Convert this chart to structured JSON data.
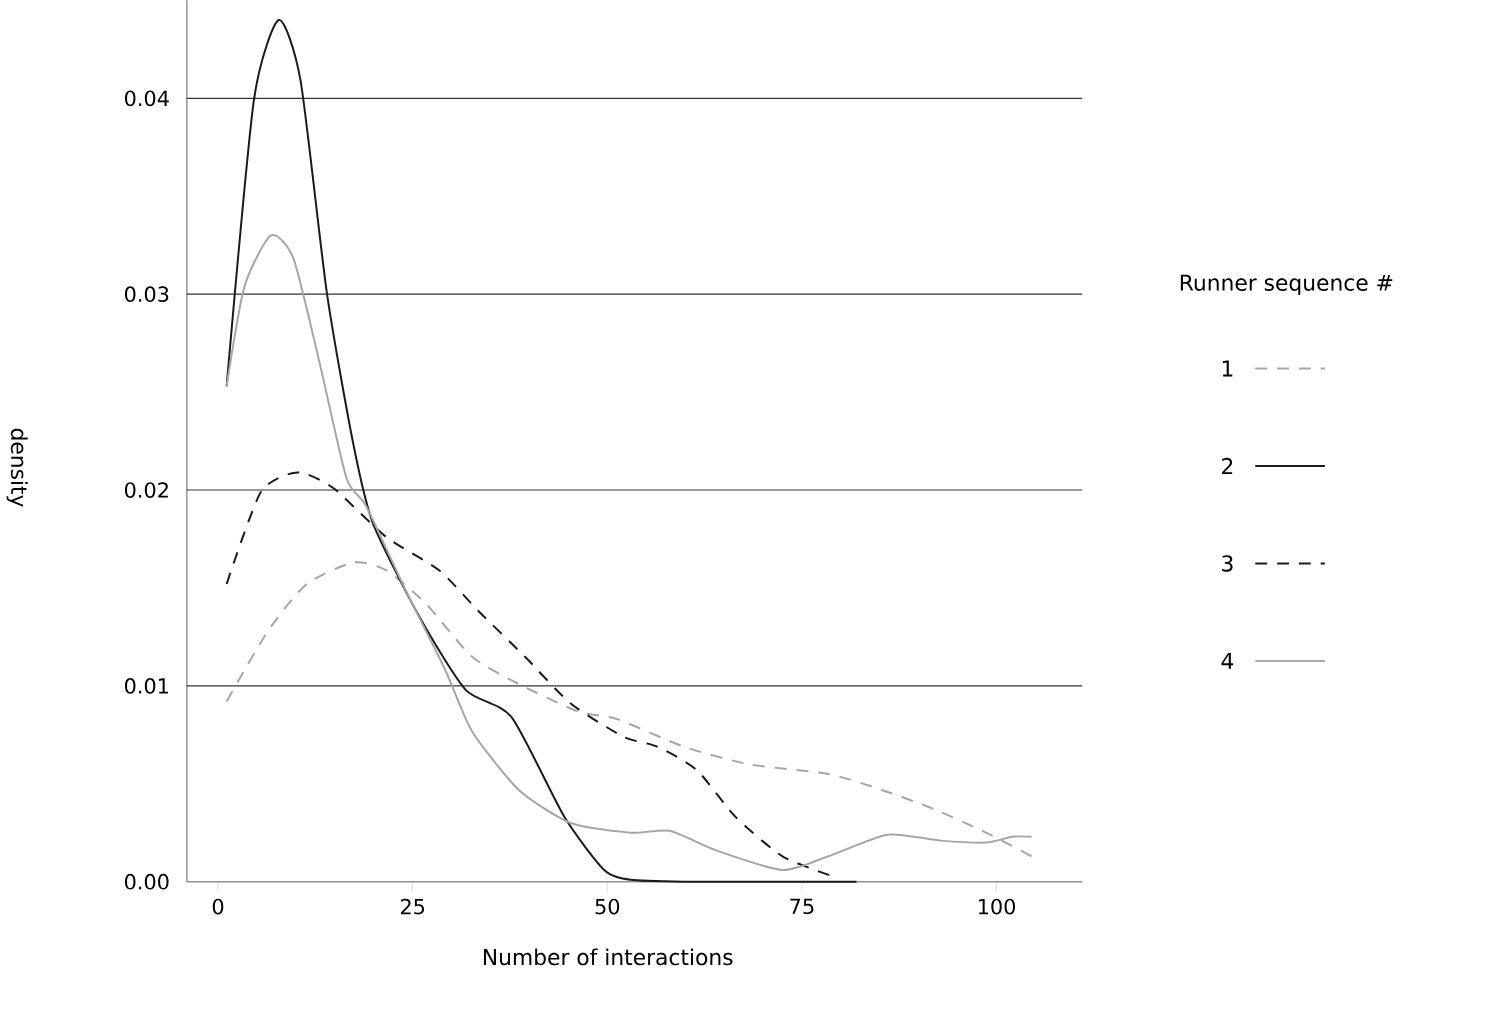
{
  "chart_data": {
    "type": "line",
    "xlabel": "Number of interactions",
    "ylabel": "density",
    "legend_title": "Runner sequence #",
    "legend": "right",
    "grid": "y",
    "xlim": [
      -4,
      111
    ],
    "ylim": [
      0,
      0.045
    ],
    "xticks": [
      0,
      25,
      50,
      75,
      100
    ],
    "yticks": [
      {
        "value": 0,
        "label": "0.00"
      },
      {
        "value": 0.01,
        "label": "0.01"
      },
      {
        "value": 0.02,
        "label": "0.02"
      },
      {
        "value": 0.03,
        "label": "0.03"
      },
      {
        "value": 0.04,
        "label": "0.04"
      }
    ],
    "series": [
      {
        "name": "1",
        "color": "#a6a6a6",
        "line_style": "dashed",
        "x": [
          1.1,
          6.4,
          11.4,
          17.4,
          21.6,
          26.7,
          32.6,
          38.6,
          46.2,
          51.3,
          59.8,
          68.2,
          78.4,
          85.2,
          92,
          98.7,
          104.5
        ],
        "values": [
          0.0092,
          0.0128,
          0.0152,
          0.0163,
          0.0159,
          0.0142,
          0.0115,
          0.0101,
          0.0087,
          0.0083,
          0.0069,
          0.006,
          0.0055,
          0.0047,
          0.0037,
          0.0025,
          0.0013
        ]
      },
      {
        "name": "2",
        "color": "#1a1a1a",
        "line_style": "solid",
        "x": [
          1.1,
          4.6,
          7.8,
          10.6,
          14,
          17.4,
          19.9,
          25.9,
          31.8,
          37.7,
          44.5,
          49.6,
          53,
          60,
          70,
          82
        ],
        "values": [
          0.0253,
          0.0399,
          0.044,
          0.0409,
          0.03,
          0.0223,
          0.0183,
          0.0135,
          0.0098,
          0.0084,
          0.0033,
          0.0006,
          0.0001,
          0,
          0,
          0
        ]
      },
      {
        "name": "3",
        "color": "#1a1a1a",
        "line_style": "dashed",
        "x": [
          1.1,
          5.5,
          10.2,
          14.8,
          21.6,
          28.4,
          33.5,
          39.4,
          45.3,
          52.1,
          56.4,
          61.5,
          66.5,
          72.5,
          78.8
        ],
        "values": [
          0.0152,
          0.0199,
          0.0209,
          0.0201,
          0.0176,
          0.0159,
          0.0138,
          0.0115,
          0.0091,
          0.0074,
          0.0069,
          0.0057,
          0.0033,
          0.0013,
          0.0003
        ]
      },
      {
        "name": "4",
        "color": "#a6a6a6",
        "line_style": "solid",
        "x": [
          1.1,
          3.4,
          6.8,
          9.7,
          13.1,
          16.5,
          19,
          24.2,
          29.2,
          32.6,
          38.6,
          45.3,
          53,
          58,
          64,
          72.5,
          78.4,
          86,
          92.8,
          98.7,
          102,
          104.5
        ],
        "values": [
          0.0253,
          0.0304,
          0.033,
          0.0318,
          0.0264,
          0.0206,
          0.0192,
          0.0148,
          0.0108,
          0.0077,
          0.0047,
          0.003,
          0.0025,
          0.0026,
          0.0016,
          0.0006,
          0.0013,
          0.0024,
          0.0021,
          0.002,
          0.0023,
          0.0023
        ]
      }
    ]
  }
}
